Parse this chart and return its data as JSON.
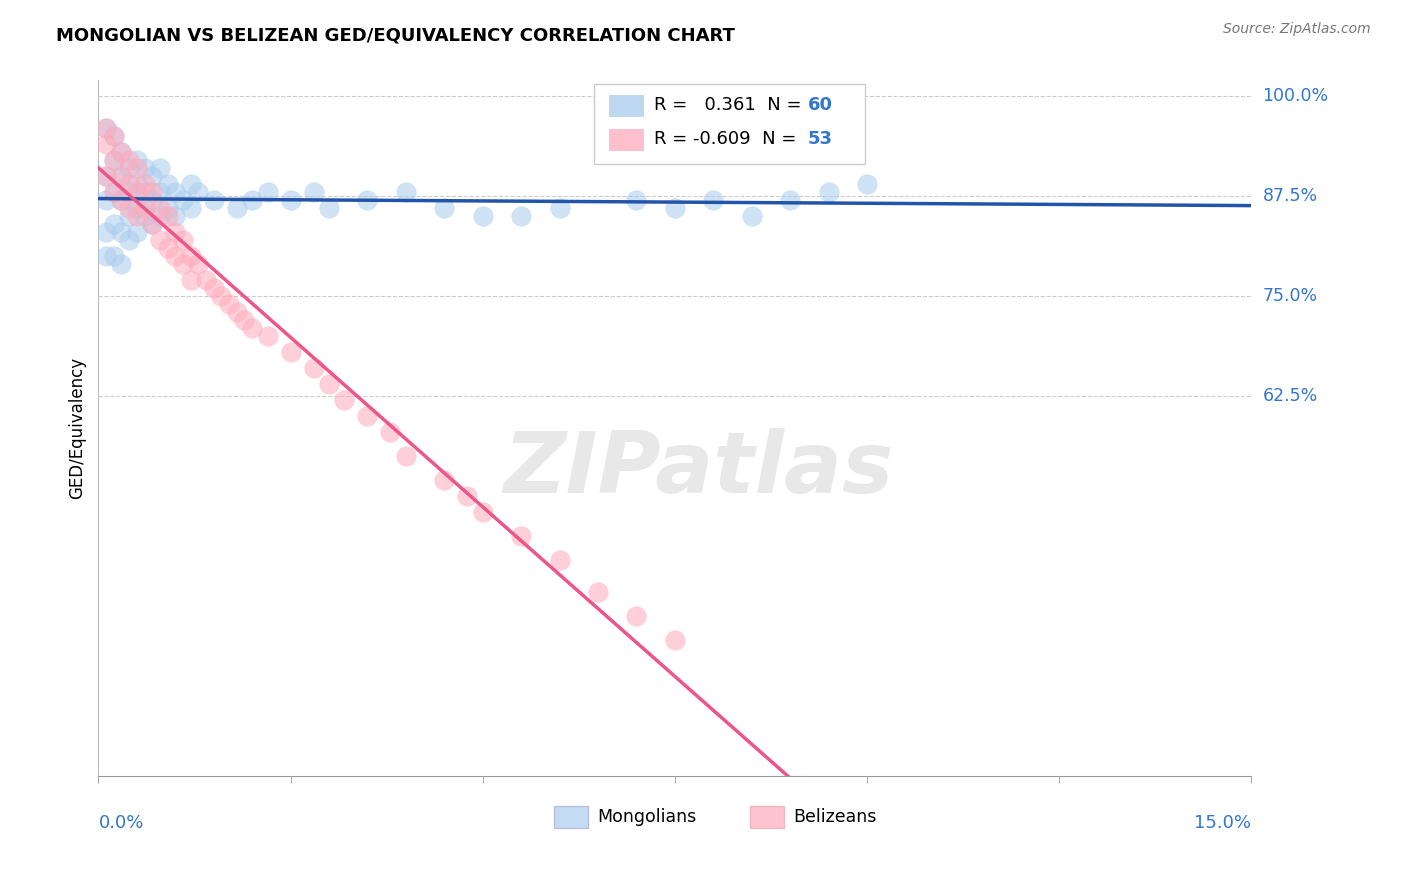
{
  "title": "MONGOLIAN VS BELIZEAN GED/EQUIVALENCY CORRELATION CHART",
  "source": "Source: ZipAtlas.com",
  "ylabel": "GED/Equivalency",
  "xmin": 0.0,
  "xmax": 0.15,
  "ymin": 0.15,
  "ymax": 1.02,
  "yticks": [
    1.0,
    0.875,
    0.75,
    0.625
  ],
  "ytick_labels": [
    "100.0%",
    "87.5%",
    "75.0%",
    "62.5%"
  ],
  "xtick_label_left": "0.0%",
  "xtick_label_right": "15.0%",
  "legend_blue_r": "0.361",
  "legend_blue_n": "60",
  "legend_pink_r": "-0.609",
  "legend_pink_n": "53",
  "blue_fill": "#aaccee",
  "pink_fill": "#ffaabb",
  "blue_line": "#2255aa",
  "pink_line": "#ee5588",
  "tick_color": "#3377cc",
  "watermark": "ZIPatlas",
  "blue_x": [
    0.001,
    0.001,
    0.001,
    0.001,
    0.001,
    0.002,
    0.002,
    0.002,
    0.002,
    0.002,
    0.003,
    0.003,
    0.003,
    0.003,
    0.003,
    0.004,
    0.004,
    0.004,
    0.004,
    0.005,
    0.005,
    0.005,
    0.005,
    0.006,
    0.006,
    0.006,
    0.007,
    0.007,
    0.007,
    0.008,
    0.008,
    0.008,
    0.009,
    0.009,
    0.01,
    0.01,
    0.011,
    0.012,
    0.012,
    0.013,
    0.015,
    0.018,
    0.02,
    0.022,
    0.025,
    0.028,
    0.03,
    0.035,
    0.04,
    0.045,
    0.05,
    0.055,
    0.06,
    0.07,
    0.075,
    0.08,
    0.085,
    0.09,
    0.095,
    0.1
  ],
  "blue_y": [
    0.96,
    0.9,
    0.87,
    0.83,
    0.8,
    0.95,
    0.92,
    0.88,
    0.84,
    0.8,
    0.93,
    0.9,
    0.87,
    0.83,
    0.79,
    0.91,
    0.88,
    0.85,
    0.82,
    0.92,
    0.89,
    0.86,
    0.83,
    0.91,
    0.88,
    0.85,
    0.9,
    0.87,
    0.84,
    0.91,
    0.88,
    0.85,
    0.89,
    0.86,
    0.88,
    0.85,
    0.87,
    0.89,
    0.86,
    0.88,
    0.87,
    0.86,
    0.87,
    0.88,
    0.87,
    0.88,
    0.86,
    0.87,
    0.88,
    0.86,
    0.85,
    0.85,
    0.86,
    0.87,
    0.86,
    0.87,
    0.85,
    0.87,
    0.88,
    0.89
  ],
  "pink_x": [
    0.001,
    0.001,
    0.001,
    0.002,
    0.002,
    0.002,
    0.003,
    0.003,
    0.003,
    0.004,
    0.004,
    0.004,
    0.005,
    0.005,
    0.005,
    0.006,
    0.006,
    0.007,
    0.007,
    0.008,
    0.008,
    0.009,
    0.009,
    0.01,
    0.01,
    0.011,
    0.011,
    0.012,
    0.012,
    0.013,
    0.014,
    0.015,
    0.016,
    0.017,
    0.018,
    0.019,
    0.02,
    0.022,
    0.025,
    0.028,
    0.03,
    0.032,
    0.035,
    0.038,
    0.04,
    0.045,
    0.048,
    0.05,
    0.055,
    0.06,
    0.065,
    0.07,
    0.075
  ],
  "pink_y": [
    0.96,
    0.94,
    0.9,
    0.95,
    0.92,
    0.88,
    0.93,
    0.9,
    0.87,
    0.92,
    0.89,
    0.86,
    0.91,
    0.88,
    0.85,
    0.89,
    0.86,
    0.88,
    0.84,
    0.86,
    0.82,
    0.85,
    0.81,
    0.83,
    0.8,
    0.82,
    0.79,
    0.8,
    0.77,
    0.79,
    0.77,
    0.76,
    0.75,
    0.74,
    0.73,
    0.72,
    0.71,
    0.7,
    0.68,
    0.66,
    0.64,
    0.62,
    0.6,
    0.58,
    0.55,
    0.52,
    0.5,
    0.48,
    0.45,
    0.42,
    0.38,
    0.35,
    0.32
  ]
}
